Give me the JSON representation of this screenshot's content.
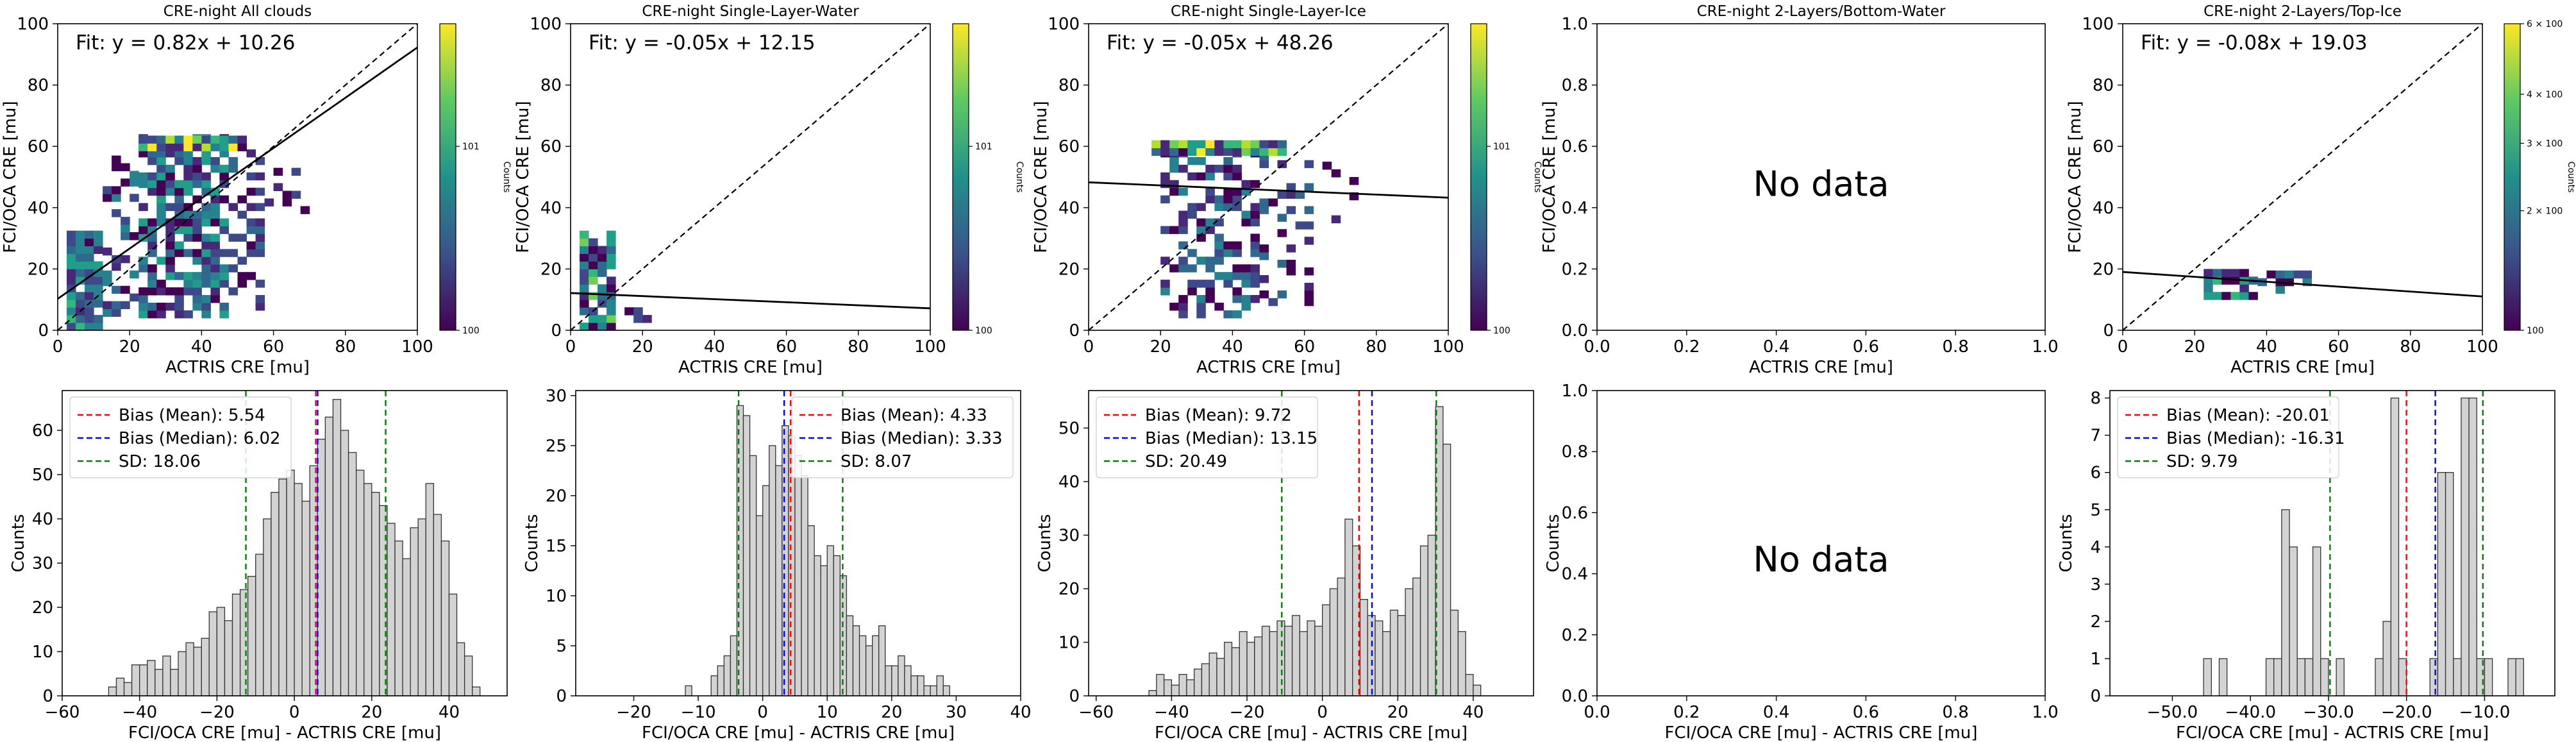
{
  "chart_data": [
    {
      "type": "heatmap",
      "title": "CRE-night All clouds",
      "xlabel": "ACTRIS CRE [mu]",
      "ylabel": "FCI/OCA CRE [mu]",
      "xlim": [
        0,
        100
      ],
      "ylim": [
        0,
        100
      ],
      "xticks": [
        0,
        20,
        40,
        60,
        80,
        100
      ],
      "yticks": [
        0,
        20,
        40,
        60,
        80,
        100
      ],
      "fit_text": "Fit: y = 0.82x + 10.26",
      "fit": {
        "slope": 0.82,
        "intercept": 10.26
      },
      "colorbar": {
        "label": "Counts",
        "ticks": [
          "10^0",
          "10^1"
        ]
      },
      "no_data": ""
    },
    {
      "type": "heatmap",
      "title": "CRE-night Single-Layer-Water",
      "xlabel": "ACTRIS CRE [mu]",
      "ylabel": "FCI/OCA CRE [mu]",
      "xlim": [
        0,
        100
      ],
      "ylim": [
        0,
        100
      ],
      "xticks": [
        0,
        20,
        40,
        60,
        80,
        100
      ],
      "yticks": [
        0,
        20,
        40,
        60,
        80,
        100
      ],
      "fit_text": "Fit: y = -0.05x + 12.15",
      "fit": {
        "slope": -0.05,
        "intercept": 12.15
      },
      "colorbar": {
        "label": "Counts",
        "ticks": [
          "10^0",
          "10^1"
        ]
      },
      "no_data": ""
    },
    {
      "type": "heatmap",
      "title": "CRE-night Single-Layer-Ice",
      "xlabel": "ACTRIS CRE [mu]",
      "ylabel": "FCI/OCA CRE [mu]",
      "xlim": [
        0,
        100
      ],
      "ylim": [
        0,
        100
      ],
      "xticks": [
        0,
        20,
        40,
        60,
        80,
        100
      ],
      "yticks": [
        0,
        20,
        40,
        60,
        80,
        100
      ],
      "fit_text": "Fit: y = -0.05x + 48.26",
      "fit": {
        "slope": -0.05,
        "intercept": 48.26
      },
      "colorbar": {
        "label": "Counts",
        "ticks": [
          "10^0",
          "10^1"
        ]
      },
      "no_data": ""
    },
    {
      "type": "heatmap",
      "title": "CRE-night 2-Layers/Bottom-Water",
      "xlabel": "ACTRIS CRE [mu]",
      "ylabel": "FCI/OCA CRE [mu]",
      "xlim": [
        0,
        1
      ],
      "ylim": [
        0,
        1
      ],
      "xticks": [
        0.0,
        0.2,
        0.4,
        0.6,
        0.8,
        1.0
      ],
      "yticks": [
        0.0,
        0.2,
        0.4,
        0.6,
        0.8,
        1.0
      ],
      "fit_text": "",
      "fit": null,
      "colorbar": null,
      "no_data": "No data"
    },
    {
      "type": "heatmap",
      "title": "CRE-night 2-Layers/Top-Ice",
      "xlabel": "ACTRIS CRE [mu]",
      "ylabel": "FCI/OCA CRE [mu]",
      "xlim": [
        0,
        100
      ],
      "ylim": [
        0,
        100
      ],
      "xticks": [
        0,
        20,
        40,
        60,
        80,
        100
      ],
      "yticks": [
        0,
        20,
        40,
        60,
        80,
        100
      ],
      "fit_text": "Fit: y = -0.08x + 19.03",
      "fit": {
        "slope": -0.08,
        "intercept": 19.03
      },
      "colorbar": {
        "label": "Counts",
        "ticks": [
          "10^0",
          "2 × 10^0",
          "3 × 10^0",
          "4 × 10^0",
          "6 × 10^0"
        ]
      },
      "no_data": ""
    },
    {
      "type": "bar",
      "xlabel": "FCI/OCA CRE [mu] - ACTRIS CRE [mu]",
      "ylabel": "Counts",
      "xlim": [
        -60,
        55
      ],
      "ylim": [
        0,
        69
      ],
      "xticks": [
        -60,
        -40,
        -20,
        0,
        20,
        40
      ],
      "yticks": [
        0,
        10,
        20,
        30,
        40,
        50,
        60
      ],
      "bin_start": -48,
      "bin_width": 2,
      "values": [
        2,
        4,
        3,
        7,
        7,
        8,
        6,
        9,
        6,
        10,
        12,
        11,
        13,
        19,
        20,
        17,
        23,
        24,
        27,
        32,
        40,
        46,
        49,
        51,
        48,
        44,
        52,
        58,
        63,
        67,
        60,
        55,
        51,
        48,
        46,
        43,
        39,
        35,
        31,
        38,
        40,
        48,
        41,
        35,
        23,
        12,
        9,
        2
      ],
      "legend": [
        "Bias (Mean): 5.54",
        "Bias (Median): 6.02",
        "SD: 18.06"
      ],
      "legend_position": "upper-left",
      "lines": {
        "mean": 5.54,
        "median": 6.02,
        "sd_low": -12.52,
        "sd_high": 23.6
      },
      "colors": {
        "mean": "#ff0000",
        "median": "#0000ff",
        "sd": "#008000",
        "bar_fill": "#d3d3d3",
        "bar_edge": "#333333"
      },
      "no_data": ""
    },
    {
      "type": "bar",
      "xlabel": "FCI/OCA CRE [mu] - ACTRIS CRE [mu]",
      "ylabel": "Counts",
      "xlim": [
        -29,
        40
      ],
      "ylim": [
        0,
        30.5
      ],
      "xticks": [
        -20,
        -10,
        0,
        10,
        20,
        30,
        40
      ],
      "yticks": [
        0,
        5,
        10,
        15,
        20,
        25,
        30
      ],
      "bin_start": -12,
      "bin_width": 1,
      "values": [
        1,
        0,
        0,
        0,
        2,
        3,
        4,
        6,
        29,
        28,
        24,
        18,
        21,
        25,
        23,
        27,
        26,
        24,
        22,
        17,
        14,
        13,
        15,
        14,
        12,
        8,
        7,
        6,
        5,
        6,
        7,
        3,
        3,
        4,
        3,
        2,
        2,
        1,
        1,
        2,
        1
      ],
      "legend": [
        "Bias (Mean): 4.33",
        "Bias (Median): 3.33",
        "SD: 8.07"
      ],
      "legend_position": "upper-right",
      "lines": {
        "mean": 4.33,
        "median": 3.33,
        "sd_low": -3.74,
        "sd_high": 12.4
      },
      "colors": {
        "mean": "#ff0000",
        "median": "#0000ff",
        "sd": "#008000",
        "bar_fill": "#d3d3d3",
        "bar_edge": "#333333"
      },
      "no_data": ""
    },
    {
      "type": "bar",
      "xlabel": "FCI/OCA CRE [mu] - ACTRIS CRE [mu]",
      "ylabel": "Counts",
      "xlim": [
        -62,
        56
      ],
      "ylim": [
        0,
        57
      ],
      "xticks": [
        -60,
        -40,
        -20,
        0,
        20,
        40
      ],
      "yticks": [
        0,
        10,
        20,
        30,
        40,
        50
      ],
      "bin_start": -46,
      "bin_width": 2,
      "values": [
        1,
        4,
        3,
        2,
        4,
        3,
        5,
        6,
        8,
        7,
        10,
        9,
        12,
        10,
        11,
        13,
        12,
        14,
        13,
        15,
        12,
        14,
        13,
        17,
        20,
        22,
        33,
        28,
        18,
        15,
        14,
        12,
        16,
        15,
        20,
        22,
        28,
        30,
        54,
        47,
        16,
        12,
        4,
        2
      ],
      "legend": [
        "Bias (Mean): 9.72",
        "Bias (Median): 13.15",
        "SD: 20.49"
      ],
      "legend_position": "upper-left",
      "lines": {
        "mean": 9.72,
        "median": 13.15,
        "sd_low": -10.77,
        "sd_high": 30.21
      },
      "colors": {
        "mean": "#ff0000",
        "median": "#0000ff",
        "sd": "#008000",
        "bar_fill": "#d3d3d3",
        "bar_edge": "#333333"
      },
      "no_data": ""
    },
    {
      "type": "bar",
      "xlabel": "FCI/OCA CRE [mu] - ACTRIS CRE [mu]",
      "ylabel": "Counts",
      "xlim": [
        0,
        1
      ],
      "ylim": [
        0,
        1
      ],
      "xticks": [
        0.0,
        0.2,
        0.4,
        0.6,
        0.8,
        1.0
      ],
      "yticks": [
        0.0,
        0.2,
        0.4,
        0.6,
        0.8,
        1.0
      ],
      "bin_start": 0,
      "bin_width": 1,
      "values": [],
      "legend": [],
      "legend_position": "",
      "lines": null,
      "colors": {
        "mean": "#ff0000",
        "median": "#0000ff",
        "sd": "#008000",
        "bar_fill": "#d3d3d3",
        "bar_edge": "#333333"
      },
      "no_data": "No data"
    },
    {
      "type": "bar",
      "xlabel": "FCI/OCA CRE [mu] - ACTRIS CRE [mu]",
      "ylabel": "Counts",
      "xlim": [
        -58,
        -1
      ],
      "ylim": [
        0,
        8.2
      ],
      "xticks": [
        -50,
        -40,
        -30,
        -20,
        -10
      ],
      "yticks": [
        0,
        1,
        2,
        3,
        4,
        5,
        6,
        7,
        8
      ],
      "bin_start": -46,
      "bin_width": 1,
      "values": [
        1,
        0,
        1,
        0,
        0,
        0,
        0,
        0,
        1,
        1,
        5,
        4,
        1,
        1,
        4,
        1,
        0,
        1,
        0,
        0,
        0,
        0,
        1,
        2,
        8,
        1,
        0,
        0,
        0,
        1,
        6,
        6,
        1,
        8,
        8,
        1,
        1,
        0,
        0,
        1,
        1
      ],
      "legend": [
        "Bias (Mean): -20.01",
        "Bias (Median): -16.31",
        "SD: 9.79"
      ],
      "legend_position": "upper-left",
      "lines": {
        "mean": -20.01,
        "median": -16.31,
        "sd_low": -29.8,
        "sd_high": -10.22
      },
      "colors": {
        "mean": "#ff0000",
        "median": "#0000ff",
        "sd": "#008000",
        "bar_fill": "#d3d3d3",
        "bar_edge": "#333333"
      },
      "no_data": ""
    }
  ]
}
